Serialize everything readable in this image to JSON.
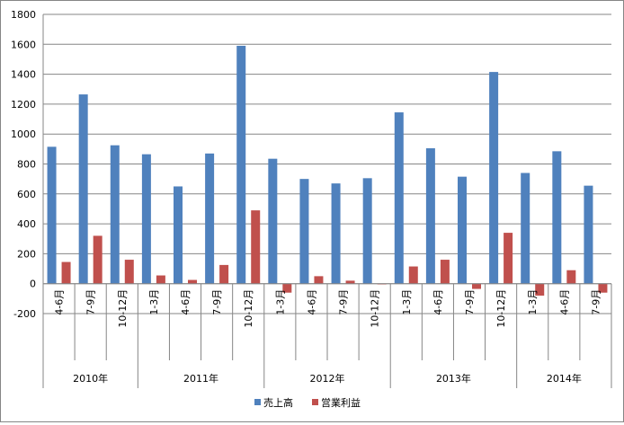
{
  "chart_data": {
    "type": "bar",
    "categories": [
      "4-6月",
      "7-9月",
      "10-12月",
      "1-3月",
      "4-6月",
      "7-9月",
      "10-12月",
      "1-3月",
      "4-6月",
      "7-9月",
      "10-12月",
      "1-3月",
      "4-6月",
      "7-9月",
      "10-12月",
      "1-3月",
      "4-6月",
      "7-9月"
    ],
    "year_groups": [
      {
        "label": "2010年",
        "count": 3
      },
      {
        "label": "2011年",
        "count": 4
      },
      {
        "label": "2012年",
        "count": 4
      },
      {
        "label": "2013年",
        "count": 4
      },
      {
        "label": "2014年",
        "count": 3
      }
    ],
    "series": [
      {
        "name": "売上高",
        "color": "#4F81BD",
        "values": [
          915,
          1265,
          925,
          865,
          650,
          870,
          1590,
          835,
          700,
          670,
          705,
          1145,
          905,
          715,
          1415,
          740,
          885,
          655
        ]
      },
      {
        "name": "営業利益",
        "color": "#C0504D",
        "values": [
          145,
          320,
          160,
          55,
          25,
          125,
          490,
          -60,
          50,
          20,
          -5,
          115,
          160,
          -35,
          340,
          -80,
          90,
          -60
        ]
      }
    ],
    "ylim": [
      -200,
      1800
    ],
    "yticks": [
      -200,
      0,
      200,
      400,
      600,
      800,
      1000,
      1200,
      1400,
      1600,
      1800
    ],
    "grid": true,
    "legend": "bottom",
    "title": "",
    "xlabel": "",
    "ylabel": ""
  }
}
